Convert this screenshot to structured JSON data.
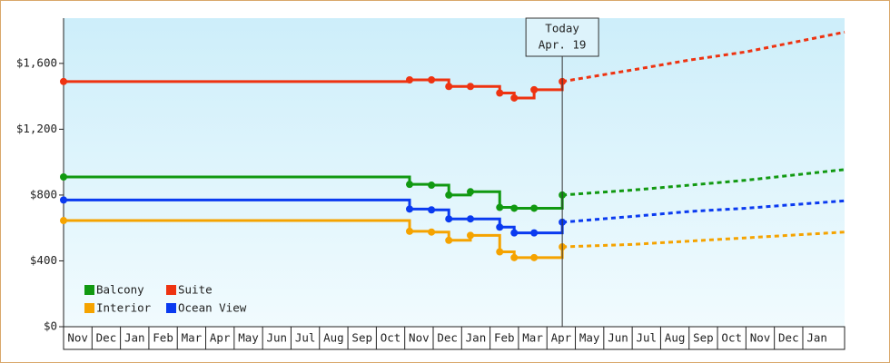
{
  "chart_data": {
    "type": "line",
    "step": true,
    "categories": [
      "Nov",
      "Dec",
      "Jan",
      "Feb",
      "Mar",
      "Apr",
      "May",
      "Jun",
      "Jul",
      "Aug",
      "Sep",
      "Oct",
      "Nov",
      "Dec",
      "Jan",
      "Feb",
      "Mar",
      "Apr",
      "May",
      "Jun",
      "Jul",
      "Aug",
      "Sep",
      "Oct",
      "Nov",
      "Dec",
      "Jan"
    ],
    "x": [
      0,
      12.17,
      12.94,
      13.55,
      14.31,
      15.34,
      15.85,
      16.55,
      17.54
    ],
    "projection_x": [
      17.54,
      20,
      22,
      24,
      27.47
    ],
    "xlim": [
      0,
      27.47
    ],
    "ylim": [
      0,
      1875
    ],
    "yticks": [
      {
        "value": 0,
        "label": "$0"
      },
      {
        "value": 400,
        "label": "$400"
      },
      {
        "value": 800,
        "label": "$800"
      },
      {
        "value": 1200,
        "label": "$1,200"
      },
      {
        "value": 1600,
        "label": "$1,600"
      }
    ],
    "legend": "bottom-left",
    "annotation": {
      "x": 17.54,
      "text": [
        "Today",
        "Apr. 19"
      ]
    },
    "series": [
      {
        "name": "Balcony",
        "color": "#119911",
        "values": [
          910,
          865,
          860,
          800,
          820,
          725,
          720,
          720,
          800
        ],
        "projection": [
          800,
          830,
          860,
          890,
          955
        ]
      },
      {
        "name": "Suite",
        "color": "#ee3311",
        "values": [
          1490,
          1500,
          1500,
          1460,
          1460,
          1420,
          1390,
          1440,
          1490
        ],
        "projection": [
          1490,
          1560,
          1620,
          1670,
          1790
        ]
      },
      {
        "name": "Interior",
        "color": "#f5a300",
        "values": [
          645,
          580,
          575,
          525,
          555,
          455,
          420,
          420,
          485
        ],
        "projection": [
          485,
          500,
          520,
          540,
          575
        ]
      },
      {
        "name": "Ocean View",
        "color": "#0a3af0",
        "values": [
          770,
          715,
          710,
          655,
          655,
          605,
          570,
          570,
          635
        ],
        "projection": [
          635,
          670,
          700,
          720,
          765
        ]
      }
    ]
  }
}
